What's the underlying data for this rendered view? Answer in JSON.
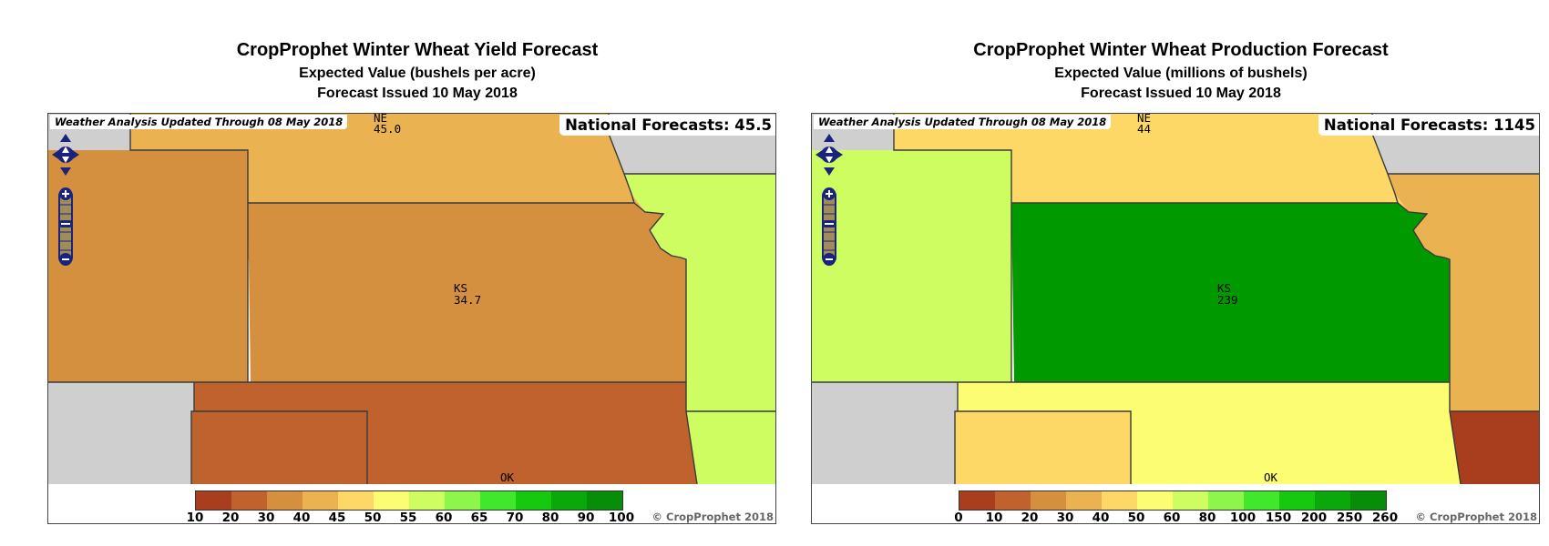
{
  "panels": [
    {
      "title": "CropProphet Winter Wheat Yield Forecast",
      "subtitle": "Expected Value (bushels per acre)",
      "issued": "Forecast Issued 10 May 2018",
      "weather_note": "Weather Analysis Updated Through 08 May 2018",
      "national": "National Forecasts: 45.5",
      "copyright": "© CropProphet 2018",
      "states": {
        "NE": {
          "label": "NE",
          "value": "45.0",
          "color": "#ebb252"
        },
        "KS": {
          "label": "KS",
          "value": "34.7",
          "color": "#d4903f"
        },
        "OK": {
          "label": "OK",
          "color": "#bf622e"
        },
        "CO": {
          "color": "#d4903f"
        },
        "MO": {
          "color": "#cefd62"
        },
        "AR": {
          "color": "#cefd62"
        },
        "TX": {
          "color": "#bf622e"
        },
        "NM": {
          "color": "#cfcfcf"
        },
        "IA": {
          "color": "#cfcfcf"
        }
      },
      "legend": {
        "colors": [
          "#a93e1e",
          "#bf622e",
          "#d4903f",
          "#ebb252",
          "#fdd866",
          "#fdfd73",
          "#cefd62",
          "#8ef54c",
          "#3fe82c",
          "#16c90f",
          "#0aa80a",
          "#088d08"
        ],
        "ticks": [
          "10",
          "20",
          "30",
          "40",
          "45",
          "50",
          "55",
          "60",
          "65",
          "70",
          "80",
          "90",
          "100"
        ]
      }
    },
    {
      "title": "CropProphet Winter Wheat Production Forecast",
      "subtitle": "Expected Value (millions of bushels)",
      "issued": "Forecast Issued 10 May 2018",
      "weather_note": "Weather Analysis Updated Through 08 May 2018",
      "national": "National Forecasts: 1145",
      "copyright": "© CropProphet 2018",
      "states": {
        "NE": {
          "label": "NE",
          "value": "44",
          "color": "#fdd866"
        },
        "KS": {
          "label": "KS",
          "value": "239",
          "color": "#009a00"
        },
        "OK": {
          "label": "OK",
          "color": "#fdfd73"
        },
        "CO": {
          "color": "#cefd62"
        },
        "MO": {
          "color": "#ebb252"
        },
        "AR": {
          "color": "#a93e1e"
        },
        "TX": {
          "color": "#fdd866"
        },
        "NM": {
          "color": "#cfcfcf"
        },
        "IA": {
          "color": "#cfcfcf"
        }
      },
      "legend": {
        "colors": [
          "#a93e1e",
          "#bf622e",
          "#d4903f",
          "#ebb252",
          "#fdd866",
          "#fdfd73",
          "#cefd62",
          "#8ef54c",
          "#3fe82c",
          "#16c90f",
          "#0aa80a",
          "#088d08"
        ],
        "ticks": [
          "0",
          "10",
          "20",
          "30",
          "40",
          "50",
          "60",
          "80",
          "100",
          "150",
          "200",
          "250",
          "260"
        ]
      }
    }
  ]
}
